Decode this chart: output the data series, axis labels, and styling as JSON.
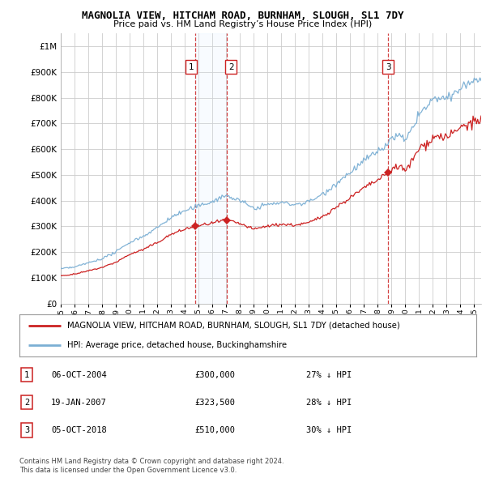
{
  "title": "MAGNOLIA VIEW, HITCHAM ROAD, BURNHAM, SLOUGH, SL1 7DY",
  "subtitle": "Price paid vs. HM Land Registry’s House Price Index (HPI)",
  "ylim": [
    0,
    1050000
  ],
  "yticks": [
    0,
    100000,
    200000,
    300000,
    400000,
    500000,
    600000,
    700000,
    800000,
    900000,
    1000000
  ],
  "ytick_labels": [
    "£0",
    "£100K",
    "£200K",
    "£300K",
    "£400K",
    "£500K",
    "£600K",
    "£700K",
    "£800K",
    "£900K",
    "£1M"
  ],
  "hpi_color": "#7bafd4",
  "price_color": "#cc2222",
  "sale_marker_color": "#cc2222",
  "vline_color": "#cc2222",
  "grid_color": "#cccccc",
  "shade_color": "#ddeeff",
  "background_color": "#ffffff",
  "sales": [
    {
      "date_num": 2004.77,
      "price": 300000,
      "label": "1"
    },
    {
      "date_num": 2007.05,
      "price": 323500,
      "label": "2"
    },
    {
      "date_num": 2018.75,
      "price": 510000,
      "label": "3"
    }
  ],
  "table_rows": [
    {
      "num": "1",
      "date": "06-OCT-2004",
      "price": "£300,000",
      "hpi": "27% ↓ HPI"
    },
    {
      "num": "2",
      "date": "19-JAN-2007",
      "price": "£323,500",
      "hpi": "28% ↓ HPI"
    },
    {
      "num": "3",
      "date": "05-OCT-2018",
      "price": "£510,000",
      "hpi": "30% ↓ HPI"
    }
  ],
  "legend_entries": [
    "MAGNOLIA VIEW, HITCHAM ROAD, BURNHAM, SLOUGH, SL1 7DY (detached house)",
    "HPI: Average price, detached house, Buckinghamshire"
  ],
  "footnote": "Contains HM Land Registry data © Crown copyright and database right 2024.\nThis data is licensed under the Open Government Licence v3.0.",
  "xmin": 1995.0,
  "xmax": 2025.5,
  "xticks": [
    1995,
    1996,
    1997,
    1998,
    1999,
    2000,
    2001,
    2002,
    2003,
    2004,
    2005,
    2006,
    2007,
    2008,
    2009,
    2010,
    2011,
    2012,
    2013,
    2014,
    2015,
    2016,
    2017,
    2018,
    2019,
    2020,
    2021,
    2022,
    2023,
    2024,
    2025
  ]
}
